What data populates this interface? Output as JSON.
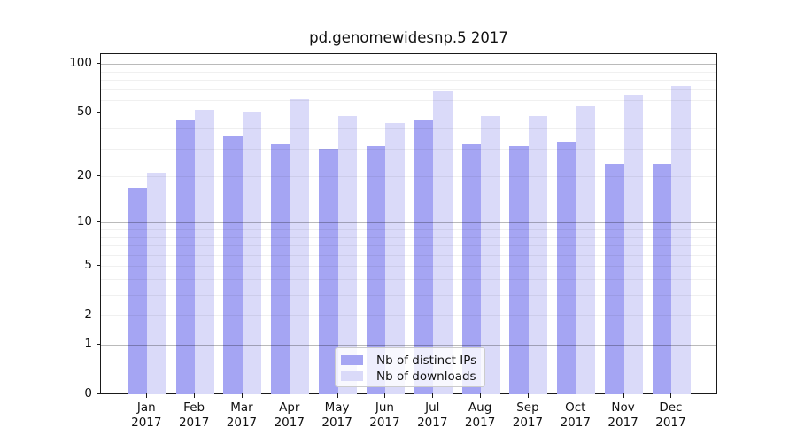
{
  "chart_data": {
    "type": "bar",
    "title": "pd.genomewidesnp.5 2017",
    "y_scale": "log1p",
    "ylim": [
      0,
      115
    ],
    "grid": true,
    "categories": [
      {
        "month": "Jan",
        "year": "2017"
      },
      {
        "month": "Feb",
        "year": "2017"
      },
      {
        "month": "Mar",
        "year": "2017"
      },
      {
        "month": "Apr",
        "year": "2017"
      },
      {
        "month": "May",
        "year": "2017"
      },
      {
        "month": "Jun",
        "year": "2017"
      },
      {
        "month": "Jul",
        "year": "2017"
      },
      {
        "month": "Aug",
        "year": "2017"
      },
      {
        "month": "Sep",
        "year": "2017"
      },
      {
        "month": "Oct",
        "year": "2017"
      },
      {
        "month": "Nov",
        "year": "2017"
      },
      {
        "month": "Dec",
        "year": "2017"
      }
    ],
    "series": [
      {
        "name": "Nb of distinct IPs",
        "color": "#a5a5f3",
        "values": [
          17,
          45,
          36,
          32,
          30,
          31,
          45,
          32,
          31,
          33,
          24,
          24
        ]
      },
      {
        "name": "Nb of downloads",
        "color": "#dadaf9",
        "values": [
          21,
          52,
          51,
          61,
          48,
          43,
          68,
          48,
          48,
          55,
          65,
          73
        ]
      }
    ],
    "y_ticks": [
      100,
      50,
      20,
      10,
      5,
      2,
      1,
      0
    ],
    "y_major_gridlines": [
      100,
      10,
      1
    ],
    "y_minor_gridlines": [
      90,
      80,
      70,
      60,
      50,
      40,
      30,
      20,
      9,
      8,
      7,
      6,
      5,
      4,
      3,
      2
    ],
    "legend_position": "lower center"
  }
}
